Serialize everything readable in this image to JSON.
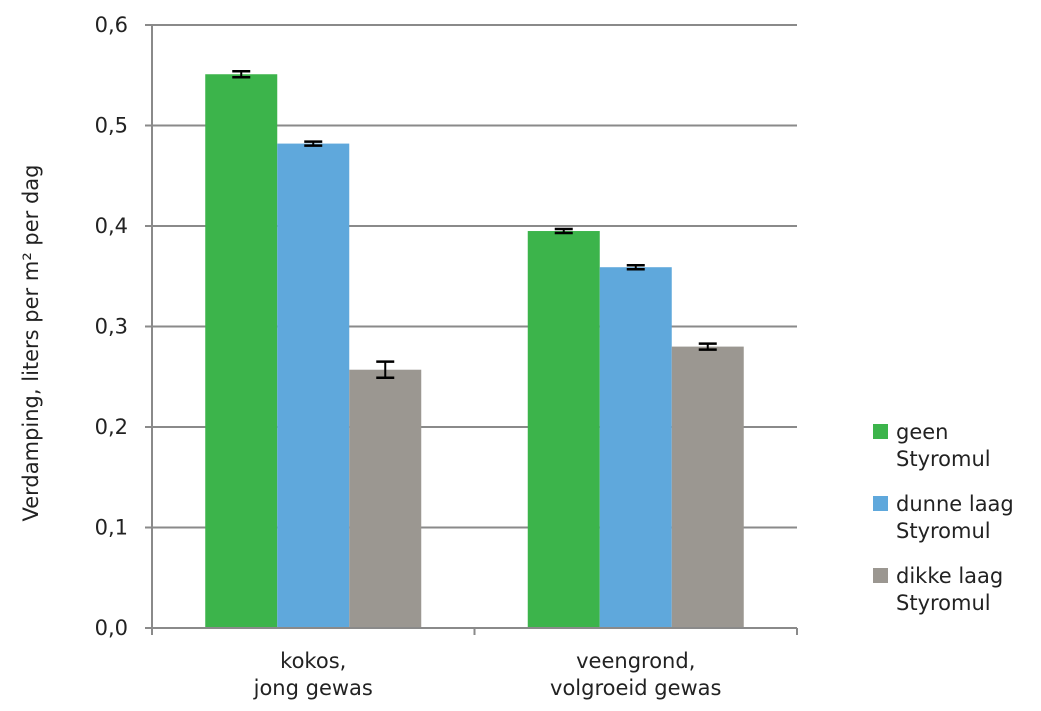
{
  "chart_data": {
    "type": "bar",
    "title": "",
    "xlabel": "",
    "ylabel": "Verdamping, liters per m² per dag",
    "ylim": [
      0,
      0.6
    ],
    "yticks": [
      "0,0",
      "0,1",
      "0,2",
      "0,3",
      "0,4",
      "0,5",
      "0,6"
    ],
    "grid": true,
    "legend_position": "right",
    "categories": [
      [
        "kokos,",
        "jong gewas"
      ],
      [
        "veengrond,",
        "volgroeid gewas"
      ]
    ],
    "series": [
      {
        "name": [
          "geen",
          "Styromul"
        ],
        "color": "#3cb44b",
        "values": [
          0.551,
          0.395
        ],
        "errors": [
          0.003,
          0.002
        ]
      },
      {
        "name": [
          "dunne laag",
          "Styromul"
        ],
        "color": "#5fa8dc",
        "values": [
          0.482,
          0.359
        ],
        "errors": [
          0.002,
          0.002
        ]
      },
      {
        "name": [
          "dikke laag",
          "Styromul"
        ],
        "color": "#9b9791",
        "values": [
          0.257,
          0.28
        ],
        "errors": [
          0.008,
          0.003
        ]
      }
    ]
  }
}
